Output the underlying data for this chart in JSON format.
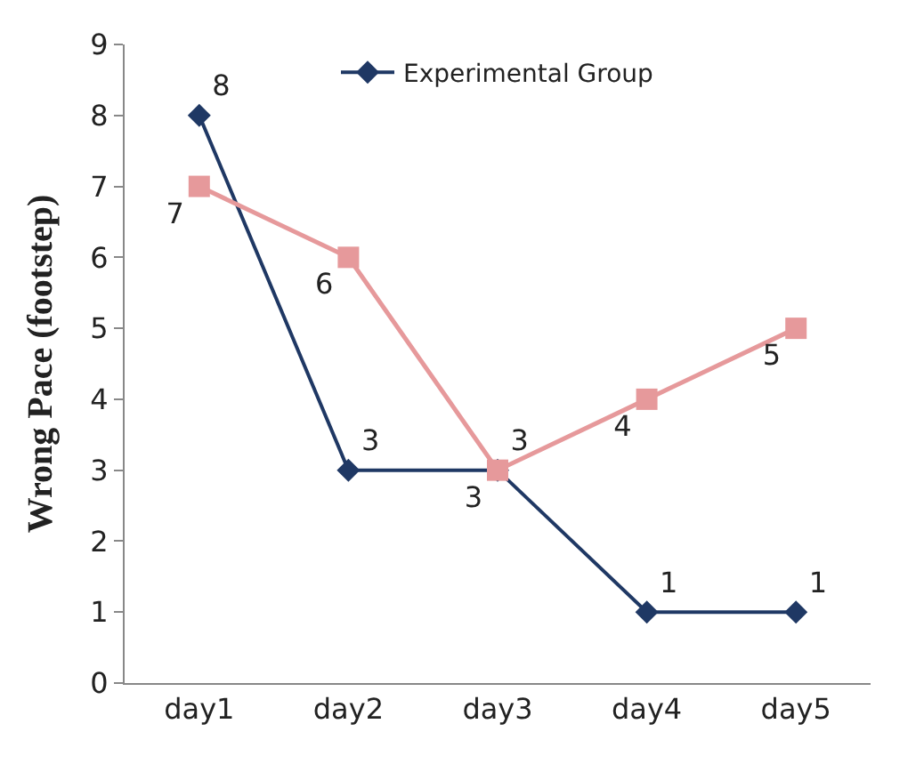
{
  "chart_data": {
    "type": "line",
    "ylabel": "Wrong Pace (footstep)",
    "categories": [
      "day1",
      "day2",
      "day3",
      "day4",
      "day5"
    ],
    "series": [
      {
        "name": "Experimental Group",
        "color": "#1f3864",
        "values": [
          8,
          3,
          3,
          1,
          1
        ],
        "marker": "diamond"
      },
      {
        "color": "#e6999b",
        "values": [
          7,
          6,
          3,
          4,
          5
        ],
        "marker": "square"
      }
    ],
    "ylim": [
      0,
      9
    ],
    "yticks": [
      0,
      1,
      2,
      3,
      4,
      5,
      6,
      7,
      8,
      9
    ],
    "legend": "top",
    "data_labels": true,
    "line_style": "solid"
  }
}
